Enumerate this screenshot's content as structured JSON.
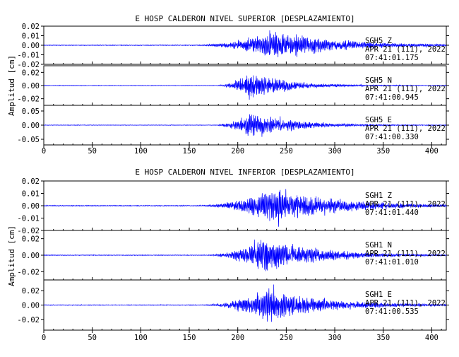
{
  "chart_data": [
    {
      "type": "line",
      "title": "E HOSP CALDERON NIVEL SUPERIOR [DESPLAZAMIENTO]",
      "ylabel": "Amplitud [cm]",
      "xlim": [
        0,
        415
      ],
      "x_ticks": [
        "0",
        "50",
        "100",
        "150",
        "200",
        "250",
        "300",
        "350",
        "400"
      ],
      "line_color": "#0000ff",
      "channels": [
        {
          "station": "SGH5",
          "component": "Z",
          "date": "APR 21 (111), 2022",
          "time": "07:41:01.175",
          "ylim": [
            -0.02,
            0.02
          ],
          "y_ticks": [
            "0.02",
            "0.01",
            "0.00",
            "-0.01",
            "-0.02"
          ],
          "envelope": {
            "onset": 150,
            "peak_time": 238,
            "peak_amplitude": 0.019,
            "rise": 25,
            "decay": 60,
            "noise": 0.0005
          }
        },
        {
          "station": "SGH5",
          "component": "N",
          "date": "APR 21 (111), 2022",
          "time": "07:41:00.945",
          "ylim": [
            -0.03,
            0.03
          ],
          "y_ticks": [
            "0.02",
            "0.00",
            "-0.02"
          ],
          "envelope": {
            "onset": 175,
            "peak_time": 214,
            "peak_amplitude": 0.027,
            "rise": 12,
            "decay": 35,
            "noise": 0.0006
          }
        },
        {
          "station": "SGH5",
          "component": "E",
          "date": "APR 21 (111), 2022",
          "time": "07:41:00.330",
          "ylim": [
            -0.07,
            0.07
          ],
          "y_ticks": [
            "0.05",
            "0.00",
            "-0.05"
          ],
          "envelope": {
            "onset": 170,
            "peak_time": 216,
            "peak_amplitude": 0.06,
            "rise": 14,
            "decay": 40,
            "noise": 0.0012
          }
        }
      ]
    },
    {
      "type": "line",
      "title": "E HOSP CALDERON NIVEL INFERIOR [DESPLAZAMIENTO]",
      "ylabel": "Amplitud [cm]",
      "xlim": [
        0,
        415
      ],
      "x_ticks": [
        "0",
        "50",
        "100",
        "150",
        "200",
        "250",
        "300",
        "350",
        "400"
      ],
      "line_color": "#0000ff",
      "channels": [
        {
          "station": "SGH1",
          "component": "Z",
          "date": "APR 21 (111), 2022",
          "time": "07:41:01.440",
          "ylim": [
            -0.02,
            0.02
          ],
          "y_ticks": [
            "0.02",
            "0.01",
            "0.00",
            "-0.01",
            "-0.02"
          ],
          "envelope": {
            "onset": 155,
            "peak_time": 237,
            "peak_amplitude": 0.019,
            "rise": 28,
            "decay": 60,
            "noise": 0.0005
          }
        },
        {
          "station": "SGH1",
          "component": "N",
          "date": "APR 21 (111), 2022",
          "time": "07:41:01.010",
          "ylim": [
            -0.03,
            0.03
          ],
          "y_ticks": [
            "0.02",
            "0.00",
            "-0.02"
          ],
          "envelope": {
            "onset": 165,
            "peak_time": 226,
            "peak_amplitude": 0.029,
            "rise": 22,
            "decay": 50,
            "noise": 0.0006
          }
        },
        {
          "station": "SGH1",
          "component": "E",
          "date": "APR 21 (111), 2022",
          "time": "07:41:00.535",
          "ylim": [
            -0.035,
            0.035
          ],
          "y_ticks": [
            "0.02",
            "0.00",
            "-0.02"
          ],
          "envelope": {
            "onset": 160,
            "peak_time": 232,
            "peak_amplitude": 0.03,
            "rise": 25,
            "decay": 55,
            "noise": 0.0007
          }
        }
      ]
    }
  ]
}
